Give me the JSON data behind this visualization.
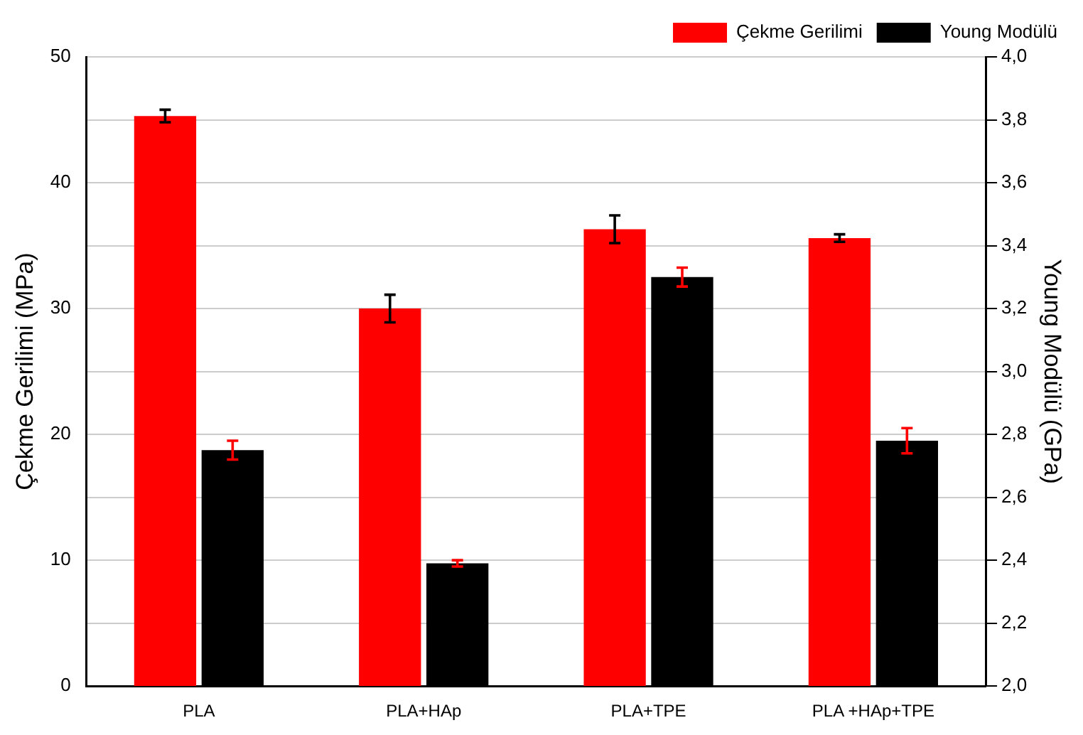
{
  "chart_data": {
    "type": "bar",
    "categories": [
      "PLA",
      "PLA+HAp",
      "PLA+TPE",
      "PLA +HAp+TPE"
    ],
    "ylabel": "Çekme Gerilimi (MPa)",
    "y2label": "Young Modülü (GPa)",
    "ylim": [
      0,
      50
    ],
    "yticks": [
      0,
      10,
      20,
      30,
      40,
      50
    ],
    "y2lim": [
      2.0,
      4.0
    ],
    "y2ticks": [
      {
        "value": 2.0,
        "label": "2,0"
      },
      {
        "value": 2.2,
        "label": "2,2"
      },
      {
        "value": 2.4,
        "label": "2,4"
      },
      {
        "value": 2.6,
        "label": "2,6"
      },
      {
        "value": 2.8,
        "label": "2,8"
      },
      {
        "value": 3.0,
        "label": "3,0"
      },
      {
        "value": 3.2,
        "label": "3,2"
      },
      {
        "value": 3.4,
        "label": "3,4"
      },
      {
        "value": 3.6,
        "label": "3,6"
      },
      {
        "value": 3.8,
        "label": "3,8"
      },
      {
        "value": 4.0,
        "label": "4,0"
      }
    ],
    "grid": "y",
    "legend": "top right",
    "series": [
      {
        "name": "Çekme Gerilimi",
        "color": "#ff0000",
        "values": [
          45.3,
          30.0,
          36.3,
          35.6
        ],
        "errors": [
          0.5,
          1.1,
          1.1,
          0.3
        ]
      },
      {
        "name": "Young Modülü",
        "color": "#000000",
        "axis": "y2",
        "values": [
          2.75,
          2.39,
          3.3,
          2.78
        ],
        "errors": [
          0.03,
          0.01,
          0.03,
          0.04
        ]
      }
    ]
  }
}
